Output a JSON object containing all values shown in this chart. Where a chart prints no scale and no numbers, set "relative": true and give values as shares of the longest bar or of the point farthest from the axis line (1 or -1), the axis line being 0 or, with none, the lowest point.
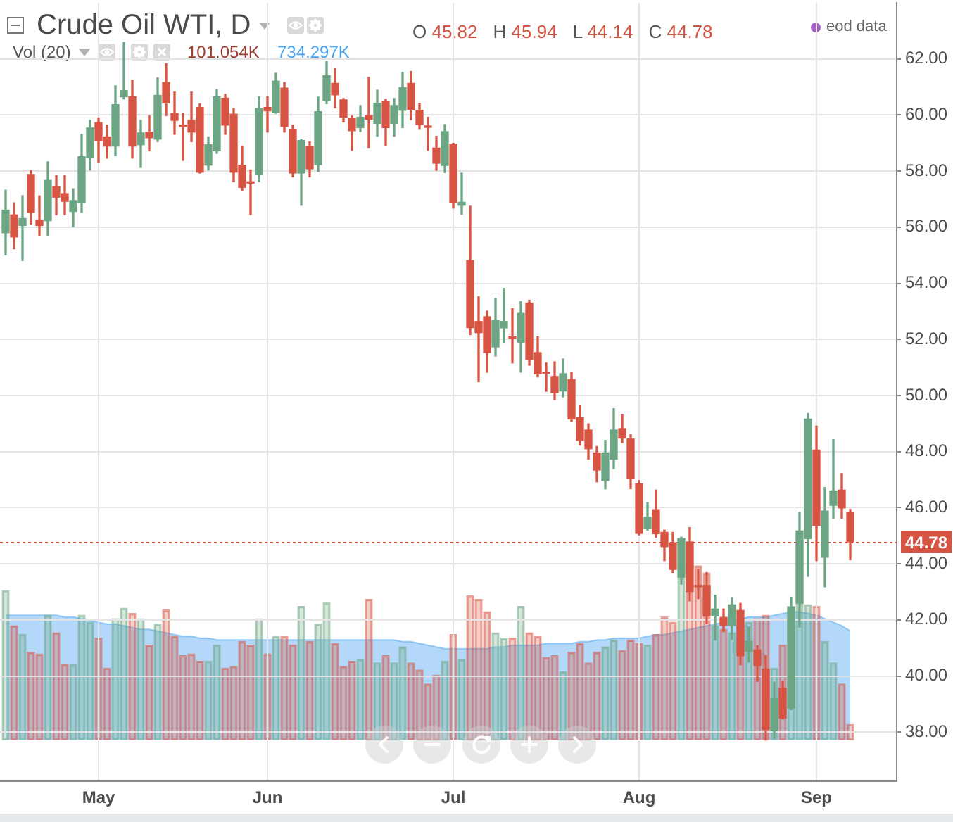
{
  "chart_data": [
    {
      "type": "candlestick",
      "title": "Crude Oil WTI, D",
      "categories": [
        null,
        null,
        null,
        null,
        null,
        null,
        null,
        null,
        null,
        null,
        null,
        "May",
        null,
        null,
        null,
        null,
        null,
        null,
        null,
        null,
        null,
        null,
        null,
        null,
        null,
        null,
        null,
        null,
        null,
        null,
        null,
        "Jun",
        null,
        null,
        null,
        null,
        null,
        null,
        null,
        null,
        null,
        null,
        null,
        null,
        null,
        null,
        null,
        null,
        null,
        null,
        null,
        null,
        null,
        "Jul",
        null,
        null,
        null,
        null,
        null,
        null,
        null,
        null,
        null,
        null,
        null,
        null,
        null,
        null,
        null,
        null,
        null,
        null,
        null,
        null,
        null,
        "Aug",
        null,
        null,
        null,
        null,
        null,
        null,
        null,
        null,
        null,
        null,
        null,
        null,
        null,
        null,
        null,
        null,
        null,
        null,
        null,
        null,
        "Sep",
        null,
        null,
        null,
        null
      ],
      "ohlc": [
        [
          55.8,
          57.32,
          55.01,
          56.61
        ],
        [
          56.44,
          56.87,
          55.23,
          55.65
        ],
        [
          56.06,
          57.12,
          54.81,
          56.31
        ],
        [
          57.88,
          58.01,
          56.11,
          56.53
        ],
        [
          56.26,
          57.12,
          55.69,
          56.06
        ],
        [
          56.23,
          58.33,
          55.69,
          57.67
        ],
        [
          57.45,
          57.84,
          56.44,
          57.07
        ],
        [
          57.2,
          57.84,
          56.44,
          56.92
        ],
        [
          56.56,
          57.37,
          56.02,
          56.95
        ],
        [
          56.87,
          59.31,
          56.53,
          58.52
        ],
        [
          58.48,
          59.81,
          58.04,
          59.54
        ],
        [
          59.73,
          59.9,
          58.3,
          59.09
        ],
        [
          59.22,
          59.64,
          58.46,
          58.89
        ],
        [
          58.89,
          61.04,
          58.55,
          60.37
        ],
        [
          60.65,
          62.59,
          60.57,
          60.87
        ],
        [
          60.65,
          61.24,
          58.46,
          58.89
        ],
        [
          58.94,
          59.81,
          58.13,
          59.36
        ],
        [
          59.39,
          59.98,
          58.72,
          59.19
        ],
        [
          59.14,
          61.33,
          59.05,
          60.7
        ],
        [
          61.16,
          61.83,
          59.98,
          60.43
        ],
        [
          60.06,
          60.82,
          59.31,
          59.81
        ],
        [
          59.64,
          60.06,
          58.38,
          59.59
        ],
        [
          59.81,
          60.82,
          59.05,
          59.39
        ],
        [
          60.27,
          60.4,
          57.93,
          57.96
        ],
        [
          58.21,
          59.22,
          58.04,
          58.94
        ],
        [
          58.72,
          60.91,
          58.63,
          60.65
        ],
        [
          60.6,
          60.74,
          59.31,
          59.64
        ],
        [
          60.03,
          60.23,
          57.62,
          57.96
        ],
        [
          58.21,
          58.89,
          57.29,
          57.42
        ],
        [
          57.62,
          58.04,
          56.44,
          57.57
        ],
        [
          57.88,
          60.65,
          57.62,
          60.23
        ],
        [
          60.27,
          60.65,
          59.39,
          60.15
        ],
        [
          60.1,
          61.49,
          60.06,
          61.21
        ],
        [
          60.96,
          61.16,
          59.39,
          59.59
        ],
        [
          59.47,
          59.64,
          57.79,
          57.93
        ],
        [
          57.93,
          59.14,
          56.78,
          59.09
        ],
        [
          58.89,
          59.05,
          57.79,
          58.08
        ],
        [
          58.23,
          60.64,
          57.98,
          60.12
        ],
        [
          60.51,
          61.92,
          60.4,
          61.4
        ],
        [
          61.13,
          61.67,
          60.25,
          60.72
        ],
        [
          60.54,
          60.59,
          59.75,
          59.92
        ],
        [
          59.88,
          59.97,
          58.74,
          59.44
        ],
        [
          59.55,
          60.34,
          59.41,
          59.92
        ],
        [
          59.98,
          61.35,
          58.82,
          59.85
        ],
        [
          59.7,
          60.89,
          59.24,
          60.42
        ],
        [
          60.47,
          60.56,
          58.91,
          59.55
        ],
        [
          59.7,
          60.59,
          59.24,
          60.34
        ],
        [
          60.17,
          61.52,
          59.55,
          60.98
        ],
        [
          61.13,
          61.55,
          59.83,
          60.2
        ],
        [
          60.17,
          60.42,
          59.49,
          59.66
        ],
        [
          59.61,
          59.92,
          58.74,
          59.56
        ],
        [
          58.82,
          59.24,
          58.03,
          58.28
        ],
        [
          58.2,
          59.66,
          57.95,
          59.41
        ],
        [
          58.96,
          58.99,
          56.68,
          56.89
        ],
        [
          56.78,
          57.93,
          56.46,
          56.89
        ],
        [
          54.81,
          56.75,
          52.17,
          52.42
        ],
        [
          52.64,
          53.52,
          50.49,
          52.24
        ],
        [
          52.81,
          53.01,
          50.83,
          51.53
        ],
        [
          51.73,
          53.47,
          51.41,
          52.68
        ],
        [
          52.41,
          53.82,
          51.87,
          52.64
        ],
        [
          52.09,
          53.1,
          51.16,
          52.04
        ],
        [
          51.9,
          53.35,
          50.83,
          52.93
        ],
        [
          53.3,
          53.4,
          51.08,
          51.28
        ],
        [
          51.53,
          52.09,
          50.66,
          50.77
        ],
        [
          50.83,
          51.16,
          50.15,
          50.79
        ],
        [
          50.68,
          51.2,
          49.85,
          50.1
        ],
        [
          50.16,
          51.3,
          49.95,
          50.78
        ],
        [
          50.57,
          50.83,
          49.07,
          49.16
        ],
        [
          49.21,
          49.63,
          48.23,
          48.4
        ],
        [
          48.77,
          48.99,
          47.73,
          48.1
        ],
        [
          47.95,
          48.18,
          46.92,
          47.34
        ],
        [
          46.97,
          48.4,
          46.67,
          47.95
        ],
        [
          47.73,
          49.53,
          47.39,
          48.77
        ],
        [
          48.82,
          49.33,
          48.32,
          48.48
        ],
        [
          48.45,
          48.6,
          46.68,
          47.05
        ],
        [
          46.85,
          46.97,
          45.03,
          45.08
        ],
        [
          45.25,
          46.18,
          45.2,
          45.67
        ],
        [
          45.93,
          46.63,
          44.95,
          45.07
        ],
        [
          45.12,
          45.2,
          44.11,
          44.61
        ],
        [
          44.75,
          45.12,
          43.69,
          43.8
        ],
        [
          43.52,
          44.95,
          43.27,
          44.9
        ],
        [
          44.78,
          45.29,
          42.68,
          43.01
        ],
        [
          43.23,
          43.82,
          42.76,
          43.18
        ],
        [
          43.23,
          43.69,
          41.87,
          42.14
        ],
        [
          42.14,
          42.88,
          41.28,
          42.39
        ],
        [
          42.09,
          42.39,
          41.58,
          41.8
        ],
        [
          41.8,
          42.79,
          41.3,
          42.54
        ],
        [
          42.34,
          42.59,
          40.4,
          40.72
        ],
        [
          40.88,
          41.75,
          40.49,
          41.23
        ],
        [
          40.93,
          41.08,
          39.81,
          40.37
        ],
        [
          40.24,
          40.74,
          37.71,
          38.1
        ],
        [
          38.05,
          39.78,
          37.79,
          39.19
        ],
        [
          39.56,
          39.81,
          38.47,
          38.5
        ],
        [
          38.86,
          42.81,
          38.8,
          42.47
        ],
        [
          42.59,
          45.84,
          41.75,
          45.17
        ],
        [
          44.9,
          49.36,
          43.55,
          49.16
        ],
        [
          48.06,
          48.91,
          44.11,
          45.37
        ],
        [
          44.23,
          46.72,
          43.18,
          45.88
        ],
        [
          46.08,
          48.43,
          45.62,
          46.6
        ],
        [
          46.63,
          47.22,
          45.62,
          45.99
        ],
        [
          45.82,
          45.94,
          44.14,
          44.78
        ]
      ],
      "colors": [
        "#6ba583",
        "#d75442",
        "#6ba583",
        "#d75442",
        "#d75442",
        "#6ba583",
        "#d75442",
        "#d75442",
        "#6ba583",
        "#6ba583",
        "#6ba583",
        "#d75442",
        "#d75442",
        "#6ba583",
        "#6ba583",
        "#d75442",
        "#6ba583",
        "#d75442",
        "#6ba583",
        "#d75442",
        "#d75442",
        "#d75442",
        "#d75442",
        "#d75442",
        "#6ba583",
        "#6ba583",
        "#d75442",
        "#d75442",
        "#d75442",
        "#d75442",
        "#6ba583",
        "#d75442",
        "#6ba583",
        "#d75442",
        "#d75442",
        "#6ba583",
        "#d75442",
        "#6ba583",
        "#6ba583",
        "#d75442",
        "#d75442",
        "#d75442",
        "#6ba583",
        "#d75442",
        "#6ba583",
        "#d75442",
        "#6ba583",
        "#6ba583",
        "#d75442",
        "#d75442",
        "#d75442",
        "#d75442",
        "#6ba583",
        "#d75442",
        "#6ba583",
        "#d75442",
        "#d75442",
        "#d75442",
        "#6ba583",
        "#6ba583",
        "#d75442",
        "#6ba583",
        "#d75442",
        "#d75442",
        "#d75442",
        "#d75442",
        "#6ba583",
        "#d75442",
        "#d75442",
        "#d75442",
        "#d75442",
        "#6ba583",
        "#6ba583",
        "#d75442",
        "#d75442",
        "#d75442",
        "#6ba583",
        "#d75442",
        "#d75442",
        "#d75442",
        "#6ba583",
        "#d75442",
        "#d75442",
        "#d75442",
        "#6ba583",
        "#d75442",
        "#6ba583",
        "#d75442",
        "#6ba583",
        "#d75442",
        "#d75442",
        "#6ba583",
        "#d75442",
        "#6ba583",
        "#6ba583",
        "#6ba583",
        "#d75442",
        "#6ba583",
        "#6ba583",
        "#d75442",
        "#d75442"
      ],
      "ylim": [
        36.25,
        64
      ],
      "yticks": [
        {
          "value": 38,
          "label": "38.00"
        },
        {
          "value": 40,
          "label": "40.00"
        },
        {
          "value": 42,
          "label": "42.00"
        },
        {
          "value": 44,
          "label": "44.00"
        },
        {
          "value": 46,
          "label": "46.00"
        },
        {
          "value": 48,
          "label": "48.00"
        },
        {
          "value": 50,
          "label": "50.00"
        },
        {
          "value": 52,
          "label": "52.00"
        },
        {
          "value": 54,
          "label": "54.00"
        },
        {
          "value": 56,
          "label": "56.00"
        },
        {
          "value": 58,
          "label": "58.00"
        },
        {
          "value": 60,
          "label": "60.00"
        },
        {
          "value": 62,
          "label": "62.00"
        }
      ],
      "grid": true,
      "ref_lines": [
        {
          "axis": "y",
          "value": 44.78,
          "label": "44.78",
          "color": "#d75442",
          "line_style": "dotted"
        }
      ],
      "annotations": [
        "O 45.82",
        "H 45.94",
        "L 44.14",
        "C 44.78",
        "eod data"
      ]
    },
    {
      "type": "bar",
      "title": "Vol (20)",
      "relative": true,
      "tick_labels": false,
      "categories": [
        null,
        null,
        null,
        null,
        null,
        null,
        null,
        null,
        null,
        null,
        null,
        null,
        null,
        null,
        null,
        null,
        null,
        null,
        null,
        null,
        null,
        null,
        null,
        null,
        null,
        null,
        null,
        null,
        null,
        null,
        null,
        null,
        null,
        null,
        null,
        null,
        null,
        null,
        null,
        null,
        null,
        null,
        null,
        null,
        null,
        null,
        null,
        null,
        null,
        null,
        null,
        null,
        null,
        null,
        null,
        null,
        null,
        null,
        null,
        null,
        null,
        null,
        null,
        null,
        null,
        null,
        null,
        null,
        null,
        null,
        null,
        null,
        null,
        null,
        null,
        null,
        null,
        null,
        null,
        null,
        null,
        null,
        null,
        null,
        null,
        null,
        null,
        null,
        null,
        null,
        null,
        null,
        null,
        null,
        null,
        null,
        null,
        null,
        null,
        null,
        null
      ],
      "series": [
        {
          "type": "bar",
          "colors": [
            "#6ba583",
            "#d75442",
            "#6ba583",
            "#d75442",
            "#d75442",
            "#6ba583",
            "#d75442",
            "#d75442",
            "#6ba583",
            "#6ba583",
            "#6ba583",
            "#d75442",
            "#d75442",
            "#6ba583",
            "#6ba583",
            "#d75442",
            "#6ba583",
            "#d75442",
            "#6ba583",
            "#d75442",
            "#d75442",
            "#d75442",
            "#d75442",
            "#d75442",
            "#6ba583",
            "#6ba583",
            "#d75442",
            "#d75442",
            "#d75442",
            "#d75442",
            "#6ba583",
            "#d75442",
            "#6ba583",
            "#d75442",
            "#d75442",
            "#6ba583",
            "#d75442",
            "#6ba583",
            "#6ba583",
            "#d75442",
            "#d75442",
            "#d75442",
            "#6ba583",
            "#d75442",
            "#6ba583",
            "#d75442",
            "#6ba583",
            "#6ba583",
            "#d75442",
            "#d75442",
            "#d75442",
            "#d75442",
            "#6ba583",
            "#d75442",
            "#6ba583",
            "#d75442",
            "#d75442",
            "#d75442",
            "#6ba583",
            "#6ba583",
            "#d75442",
            "#6ba583",
            "#d75442",
            "#d75442",
            "#d75442",
            "#d75442",
            "#6ba583",
            "#d75442",
            "#d75442",
            "#d75442",
            "#d75442",
            "#6ba583",
            "#6ba583",
            "#d75442",
            "#d75442",
            "#d75442",
            "#6ba583",
            "#d75442",
            "#d75442",
            "#d75442",
            "#6ba583",
            "#d75442",
            "#d75442",
            "#d75442",
            "#6ba583",
            "#d75442",
            "#6ba583",
            "#d75442",
            "#6ba583",
            "#d75442",
            "#d75442",
            "#6ba583",
            "#d75442",
            "#6ba583",
            "#6ba583",
            "#6ba583",
            "#d75442",
            "#6ba583",
            "#6ba583",
            "#d75442",
            "#d75442"
          ],
          "values": [
            0.85,
            0.65,
            0.6,
            0.5,
            0.49,
            0.71,
            0.61,
            0.43,
            0.43,
            0.71,
            0.67,
            0.58,
            0.41,
            0.69,
            0.75,
            0.72,
            0.69,
            0.54,
            0.66,
            0.74,
            0.59,
            0.48,
            0.49,
            0.45,
            0.45,
            0.54,
            0.41,
            0.42,
            0.56,
            0.54,
            0.69,
            0.49,
            0.59,
            0.59,
            0.54,
            0.76,
            0.56,
            0.66,
            0.78,
            0.55,
            0.42,
            0.45,
            0.46,
            0.8,
            0.44,
            0.48,
            0.44,
            0.53,
            0.44,
            0.4,
            0.32,
            0.37,
            0.45,
            0.6,
            0.46,
            0.82,
            0.8,
            0.73,
            0.61,
            0.58,
            0.58,
            0.76,
            0.61,
            0.59,
            0.47,
            0.48,
            0.39,
            0.5,
            0.55,
            0.44,
            0.5,
            0.53,
            0.57,
            0.51,
            0.57,
            0.55,
            0.54,
            0.6,
            0.7,
            0.67,
            0.93,
            1,
            0.99,
            0.95,
            0.65,
            0.63,
            0.61,
            0.65,
            0.67,
            0.69,
            0.71,
            0.41,
            0.54,
            0.71,
            0.79,
            0.77,
            0.76,
            0.56,
            0.44,
            0.32,
            0.09
          ]
        },
        {
          "type": "area",
          "color": "#4aa3f0",
          "values": [
            0.71,
            0.71,
            0.71,
            0.71,
            0.71,
            0.71,
            0.71,
            0.7,
            0.7,
            0.69,
            0.68,
            0.67,
            0.66,
            0.66,
            0.65,
            0.64,
            0.63,
            0.63,
            0.62,
            0.61,
            0.6,
            0.59,
            0.59,
            0.58,
            0.58,
            0.57,
            0.57,
            0.57,
            0.57,
            0.57,
            0.57,
            0.57,
            0.57,
            0.57,
            0.57,
            0.57,
            0.57,
            0.57,
            0.57,
            0.57,
            0.57,
            0.57,
            0.57,
            0.57,
            0.57,
            0.57,
            0.57,
            0.56,
            0.56,
            0.55,
            0.54,
            0.53,
            0.52,
            0.52,
            0.52,
            0.52,
            0.52,
            0.52,
            0.53,
            0.53,
            0.54,
            0.54,
            0.54,
            0.54,
            0.55,
            0.55,
            0.55,
            0.55,
            0.56,
            0.56,
            0.57,
            0.57,
            0.58,
            0.58,
            0.58,
            0.58,
            0.59,
            0.6,
            0.6,
            0.61,
            0.62,
            0.63,
            0.64,
            0.65,
            0.66,
            0.67,
            0.68,
            0.69,
            0.7,
            0.7,
            0.7,
            0.71,
            0.72,
            0.73,
            0.73,
            0.72,
            0.71,
            0.69,
            0.67,
            0.65,
            0.62
          ]
        }
      ],
      "annotations": [
        "101.054K",
        "734.297K"
      ]
    }
  ]
}
